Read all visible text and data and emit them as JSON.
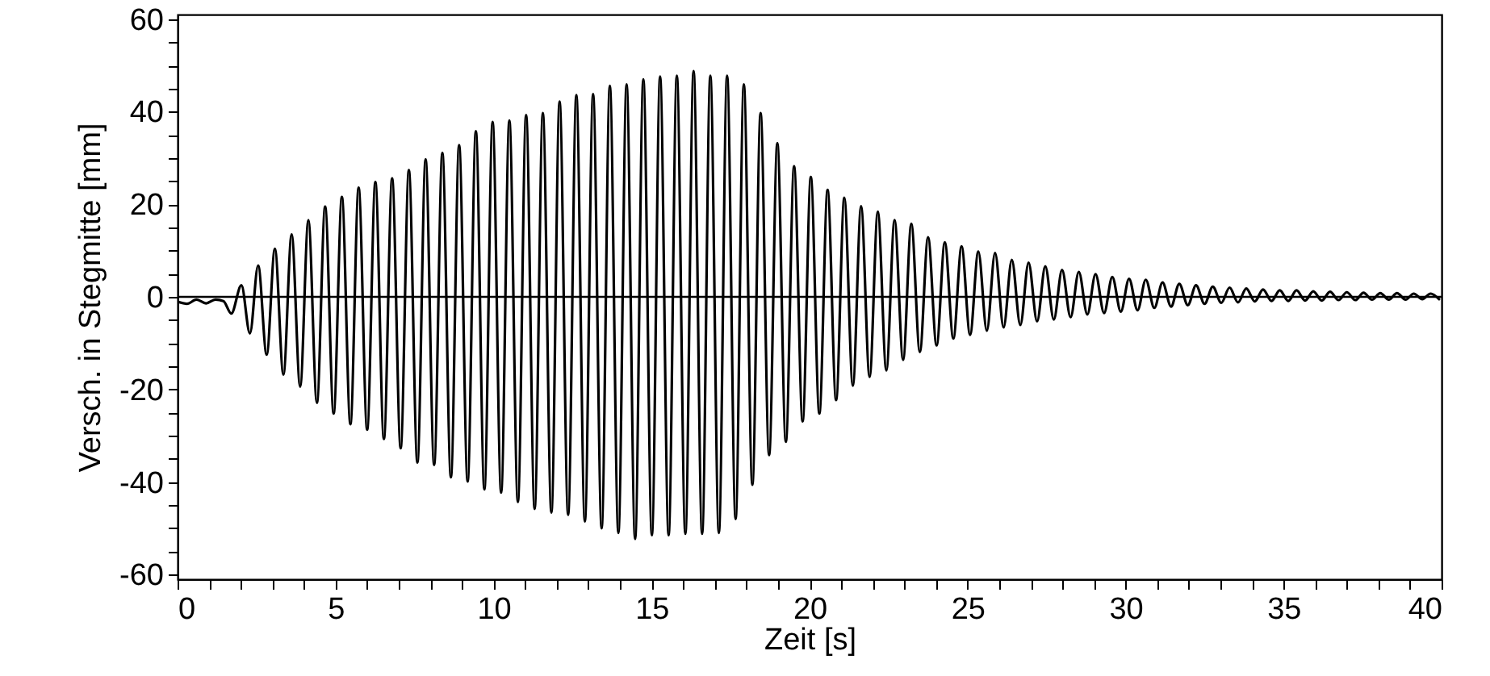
{
  "chart_data": {
    "type": "line",
    "xlabel": "Zeit [s]",
    "ylabel": "Versch. in Stegmitte [mm]",
    "xlim": [
      0,
      40
    ],
    "ylim": [
      -61,
      61
    ],
    "xticks": [
      0,
      {
        "value": 1,
        "label": null
      },
      {
        "value": 2,
        "label": null
      },
      {
        "value": 3,
        "label": null
      },
      {
        "value": 4,
        "label": null
      },
      5,
      {
        "value": 6,
        "label": null
      },
      {
        "value": 7,
        "label": null
      },
      {
        "value": 8,
        "label": null
      },
      {
        "value": 9,
        "label": null
      },
      10,
      {
        "value": 11,
        "label": null
      },
      {
        "value": 12,
        "label": null
      },
      {
        "value": 13,
        "label": null
      },
      {
        "value": 14,
        "label": null
      },
      15,
      {
        "value": 16,
        "label": null
      },
      {
        "value": 17,
        "label": null
      },
      {
        "value": 18,
        "label": null
      },
      {
        "value": 19,
        "label": null
      },
      20,
      {
        "value": 21,
        "label": null
      },
      {
        "value": 22,
        "label": null
      },
      {
        "value": 23,
        "label": null
      },
      {
        "value": 24,
        "label": null
      },
      25,
      {
        "value": 26,
        "label": null
      },
      {
        "value": 27,
        "label": null
      },
      {
        "value": 28,
        "label": null
      },
      {
        "value": 29,
        "label": null
      },
      30,
      {
        "value": 31,
        "label": null
      },
      {
        "value": 32,
        "label": null
      },
      {
        "value": 33,
        "label": null
      },
      {
        "value": 34,
        "label": null
      },
      35,
      {
        "value": 36,
        "label": null
      },
      {
        "value": 37,
        "label": null
      },
      {
        "value": 38,
        "label": null
      },
      {
        "value": 39,
        "label": null
      },
      40
    ],
    "yticks": [
      -60,
      {
        "value": -55,
        "label": null
      },
      {
        "value": -50,
        "label": null
      },
      {
        "value": -45,
        "label": null
      },
      -40,
      {
        "value": -35,
        "label": null
      },
      {
        "value": -30,
        "label": null
      },
      {
        "value": -25,
        "label": null
      },
      -20,
      {
        "value": -15,
        "label": null
      },
      {
        "value": -10,
        "label": null
      },
      {
        "value": -5,
        "label": null
      },
      0,
      {
        "value": 5,
        "label": null
      },
      {
        "value": 10,
        "label": null
      },
      {
        "value": 15,
        "label": null
      },
      20,
      {
        "value": 25,
        "label": null
      },
      {
        "value": 30,
        "label": null
      },
      {
        "value": 35,
        "label": null
      },
      40,
      {
        "value": 45,
        "label": null
      },
      {
        "value": 50,
        "label": null
      },
      {
        "value": 55,
        "label": null
      },
      60
    ],
    "grid": false,
    "marker": "none",
    "line_style": "solid",
    "ref_lines": [
      {
        "axis": "y",
        "value": 0,
        "color": "#000000",
        "line_style": "solid"
      }
    ],
    "series": [
      {
        "color": "#000000",
        "x": [
          0,
          0.3,
          0.6,
          0.9,
          1.2,
          1.45,
          1.7,
          2.02,
          2.29,
          2.55,
          2.82,
          3.08,
          3.35,
          3.61,
          3.88,
          4.14,
          4.41,
          4.67,
          4.94,
          5.2,
          5.47,
          5.73,
          6.0,
          6.26,
          6.53,
          6.79,
          7.06,
          7.32,
          7.59,
          7.85,
          8.12,
          8.38,
          8.65,
          8.91,
          9.18,
          9.44,
          9.71,
          9.97,
          10.24,
          10.5,
          10.77,
          11.03,
          11.3,
          11.56,
          11.83,
          12.09,
          12.36,
          12.62,
          12.89,
          13.15,
          13.42,
          13.68,
          13.95,
          14.21,
          14.48,
          14.74,
          15.01,
          15.27,
          15.54,
          15.8,
          16.07,
          16.33,
          16.6,
          16.86,
          17.13,
          17.39,
          17.66,
          17.92,
          18.19,
          18.45,
          18.72,
          18.98,
          19.25,
          19.51,
          19.78,
          20.04,
          20.31,
          20.57,
          20.84,
          21.1,
          21.37,
          21.63,
          21.9,
          22.16,
          22.43,
          22.69,
          22.96,
          23.22,
          23.49,
          23.75,
          24.02,
          24.28,
          24.55,
          24.81,
          25.08,
          25.34,
          25.61,
          25.87,
          26.14,
          26.4,
          26.67,
          26.93,
          27.2,
          27.46,
          27.73,
          27.99,
          28.26,
          28.52,
          28.79,
          29.05,
          29.32,
          29.58,
          29.85,
          30.11,
          30.38,
          30.64,
          30.91,
          31.17,
          31.44,
          31.7,
          31.97,
          32.23,
          32.5,
          32.76,
          33.03,
          33.29,
          33.56,
          33.82,
          34.09,
          34.35,
          34.62,
          34.88,
          35.15,
          35.41,
          35.68,
          35.94,
          36.21,
          36.47,
          36.74,
          37.0,
          37.27,
          37.53,
          37.8,
          38.06,
          38.33,
          38.59,
          38.86,
          39.12,
          39.39,
          39.65,
          39.92
        ],
        "values": [
          -1,
          -1.5,
          -0.6,
          -1.4,
          -0.6,
          -0.9,
          -3.6,
          2.5,
          -7.9,
          6.8,
          -12.5,
          10.4,
          -16.8,
          13.5,
          -19.4,
          16.6,
          -22.9,
          19.5,
          -25.2,
          21.6,
          -27.5,
          23.6,
          -28.7,
          24.8,
          -30.7,
          25.6,
          -32.7,
          27.4,
          -35.8,
          29.7,
          -36.3,
          31.1,
          -39,
          32.8,
          -39.9,
          35.8,
          -41.6,
          37.8,
          -42.3,
          38.1,
          -44.3,
          39.3,
          -45.8,
          39.7,
          -46.6,
          42.2,
          -47.1,
          43.6,
          -48.5,
          43.8,
          -50,
          45.6,
          -51,
          45.9,
          -52.3,
          47,
          -51.5,
          47.6,
          -51.5,
          47.8,
          -51.2,
          48.8,
          -51.2,
          47.8,
          -51,
          47.8,
          -48,
          45.9,
          -40.6,
          39.7,
          -34.2,
          33.2,
          -31.3,
          28.2,
          -26.9,
          25.9,
          -25.2,
          23.1,
          -22.3,
          21.4,
          -19.2,
          19.6,
          -17.3,
          18.4,
          -15.9,
          16.6,
          -13.6,
          15.8,
          -11.9,
          12.9,
          -10.5,
          11.8,
          -9,
          10.9,
          -8.2,
          9.8,
          -7.3,
          9.5,
          -6.6,
          8,
          -6.1,
          7.4,
          -5.3,
          6.6,
          -4.9,
          5.8,
          -4.4,
          5.4,
          -3.8,
          4.9,
          -3.5,
          4.3,
          -3.2,
          3.9,
          -2.9,
          3.7,
          -2.4,
          3.1,
          -2.1,
          2.8,
          -1.8,
          2.5,
          -1.5,
          2.2,
          -1.3,
          2.0,
          -1.2,
          1.8,
          -1.0,
          1.6,
          -0.9,
          1.4,
          -0.9,
          1.4,
          -0.8,
          1.2,
          -0.8,
          1.1,
          -0.7,
          1.0,
          -0.7,
          0.9,
          -0.6,
          0.8,
          -0.6,
          0.8,
          -0.6,
          0.7,
          -0.5,
          0.7,
          -0.5
        ]
      }
    ]
  }
}
